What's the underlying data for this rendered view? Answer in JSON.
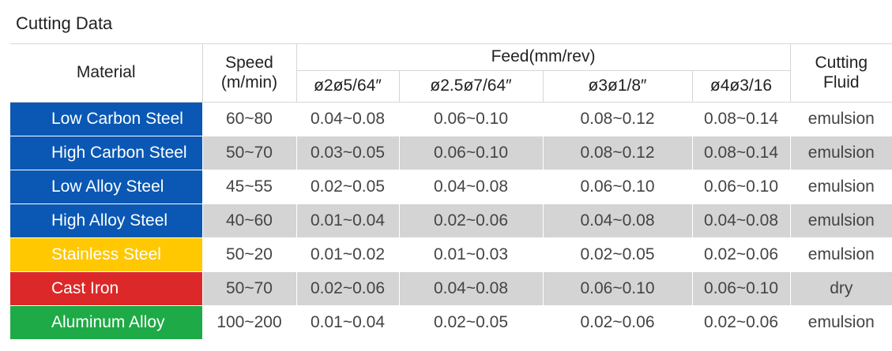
{
  "title": "Cutting Data",
  "headers": {
    "material": "Material",
    "speed": "Speed\n(m/min)",
    "feed": "Feed(mm/rev)",
    "feed_sizes": [
      "ø2ø5/64″",
      "ø2.5ø7/64″",
      "ø3ø1/8″",
      "ø4ø3/16"
    ],
    "fluid": "Cutting\nFluid"
  },
  "rows": [
    {
      "material": "Low Carbon Steel",
      "color": "#0a58b4",
      "speed": "60~80",
      "feeds": [
        "0.04~0.08",
        "0.06~0.10",
        "0.08~0.12",
        "0.08~0.14"
      ],
      "fluid": "emulsion"
    },
    {
      "material": "High Carbon Steel",
      "color": "#0a58b4",
      "speed": "50~70",
      "feeds": [
        "0.03~0.05",
        "0.06~0.10",
        "0.08~0.12",
        "0.08~0.14"
      ],
      "fluid": "emulsion"
    },
    {
      "material": "Low Alloy Steel",
      "color": "#0a58b4",
      "speed": "45~55",
      "feeds": [
        "0.02~0.05",
        "0.04~0.08",
        "0.06~0.10",
        "0.06~0.10"
      ],
      "fluid": "emulsion"
    },
    {
      "material": "High Alloy Steel",
      "color": "#0a58b4",
      "speed": "40~60",
      "feeds": [
        "0.01~0.04",
        "0.02~0.06",
        "0.04~0.08",
        "0.04~0.08"
      ],
      "fluid": "emulsion"
    },
    {
      "material": "Stainless Steel",
      "color": "#ffc800",
      "speed": "50~20",
      "feeds": [
        "0.01~0.02",
        "0.01~0.03",
        "0.02~0.05",
        "0.02~0.06"
      ],
      "fluid": "emulsion"
    },
    {
      "material": "Cast Iron",
      "color": "#dc2828",
      "speed": "50~70",
      "feeds": [
        "0.02~0.06",
        "0.04~0.08",
        "0.06~0.10",
        "0.06~0.10"
      ],
      "fluid": "dry"
    },
    {
      "material": "Aluminum Alloy",
      "color": "#1eaa46",
      "speed": "100~200",
      "feeds": [
        "0.01~0.04",
        "0.02~0.05",
        "0.02~0.06",
        "0.02~0.06"
      ],
      "fluid": "emulsion"
    }
  ]
}
